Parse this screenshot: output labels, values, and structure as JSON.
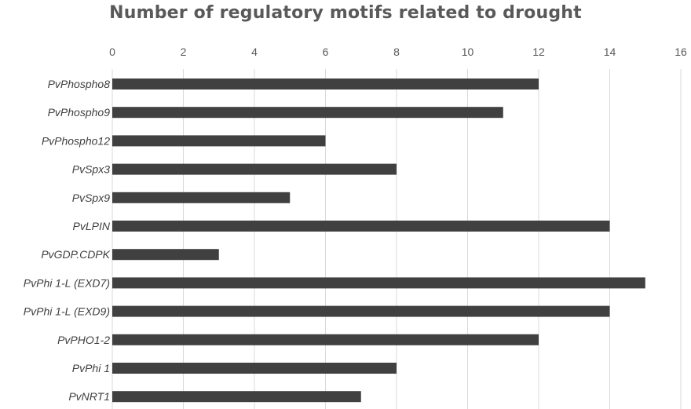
{
  "chart_data": {
    "type": "bar",
    "orientation": "horizontal",
    "title": "Number of regulatory motifs related to drought",
    "xlabel": "",
    "ylabel": "",
    "xlim": [
      0,
      16
    ],
    "x_ticks": [
      0,
      2,
      4,
      6,
      8,
      10,
      12,
      14,
      16
    ],
    "x_axis_position": "top",
    "grid": true,
    "legend": "none",
    "bar_color": "#404040",
    "grid_color": "#d9d9d9",
    "categories": [
      "PvPhospho8",
      "PvPhospho9",
      "PvPhospho12",
      "PvSpx3",
      "PvSpx9",
      "PvLPIN",
      "PvGDP.CDPK",
      "PvPhi 1-L (EXD7)",
      "PvPhi 1-L (EXD9)",
      "PvPHO1-2",
      "PvPhi 1",
      "PvNRT1"
    ],
    "values": [
      12,
      11,
      6,
      8,
      5,
      14,
      3,
      15,
      14,
      12,
      8,
      7
    ]
  }
}
